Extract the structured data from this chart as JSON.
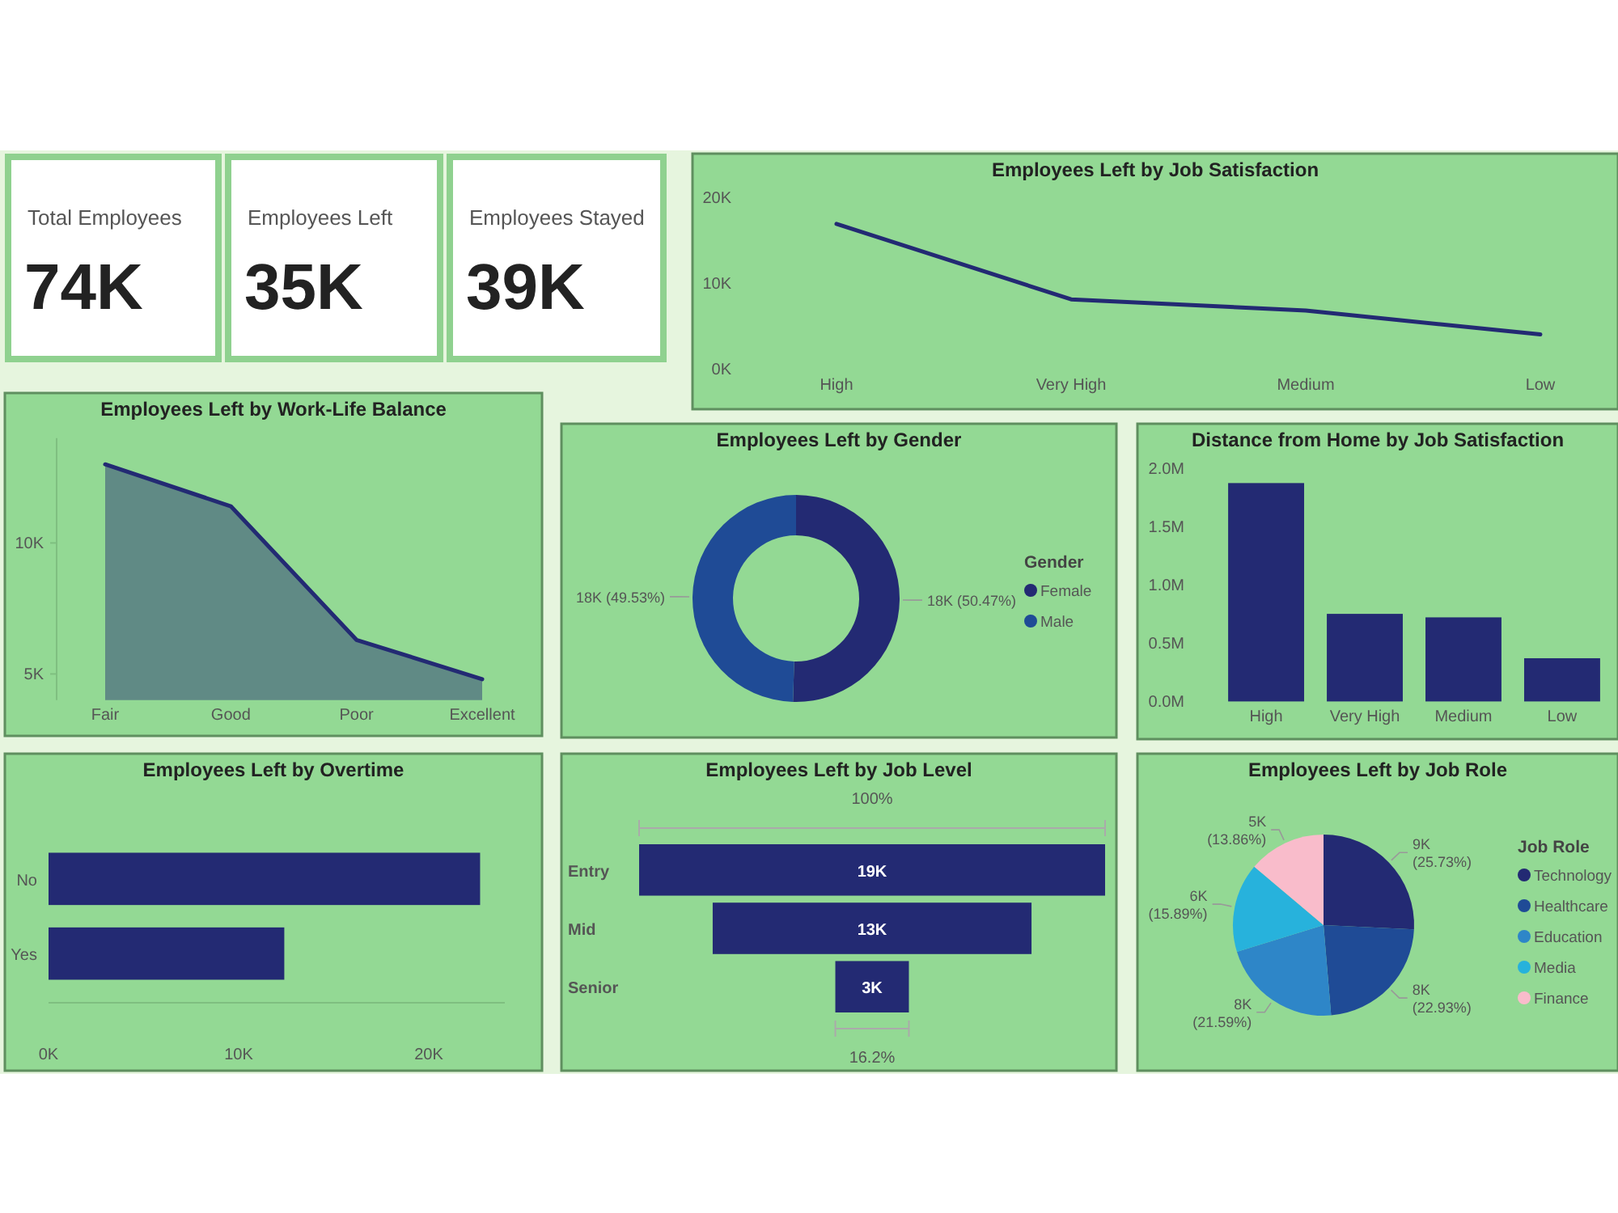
{
  "chart_data": [
    {
      "type": "other",
      "title": "Total Employees",
      "annotations": [
        "74K"
      ]
    },
    {
      "type": "other",
      "title": "Employees Left",
      "annotations": [
        "35K"
      ]
    },
    {
      "type": "other",
      "title": "Employees Stayed",
      "annotations": [
        "39K"
      ]
    },
    {
      "type": "line",
      "title": "Employees Left by Job Satisfaction",
      "categories": [
        "High",
        "Very High",
        "Medium",
        "Low"
      ],
      "values": [
        16900,
        8100,
        6800,
        4000
      ],
      "color": "#232a73",
      "ylim": [
        0,
        20000
      ],
      "yticks": [
        {
          "value": 0,
          "label": "0K"
        },
        {
          "value": 10000,
          "label": "10K"
        },
        {
          "value": 20000,
          "label": "20K"
        }
      ]
    },
    {
      "type": "area",
      "title": "Employees Left by Work-Life Balance",
      "categories": [
        "Fair",
        "Good",
        "Poor",
        "Excellent"
      ],
      "values": [
        13000,
        11400,
        6300,
        4800
      ],
      "color": "#232a73",
      "ylim": [
        4000,
        14000
      ],
      "yticks": [
        {
          "value": 5000,
          "label": "5K"
        },
        {
          "value": 10000,
          "label": "10K"
        }
      ]
    },
    {
      "type": "donut",
      "title": "Employees Left by Gender",
      "categories": [
        "Female",
        "Male"
      ],
      "values": [
        50.47,
        49.53
      ],
      "value_labels": [
        "18K (50.47%)",
        "18K (49.53%)"
      ],
      "colors": [
        "#232a73",
        "#1f4b96"
      ],
      "legend": "right",
      "legend_title": "Gender"
    },
    {
      "type": "bar",
      "title": "Distance from Home by Job Satisfaction",
      "categories": [
        "High",
        "Very High",
        "Medium",
        "Low"
      ],
      "values": [
        1870000,
        750000,
        720000,
        370000
      ],
      "color": "#232a73",
      "ylim": [
        0,
        2000000
      ],
      "yticks": [
        {
          "value": 0,
          "label": "0.0M"
        },
        {
          "value": 500000,
          "label": "0.5M"
        },
        {
          "value": 1000000,
          "label": "1.0M"
        },
        {
          "value": 1500000,
          "label": "1.5M"
        },
        {
          "value": 2000000,
          "label": "2.0M"
        }
      ]
    },
    {
      "type": "bar",
      "orientation": "horizontal",
      "title": "Employees Left by Overtime",
      "categories": [
        "No",
        "Yes"
      ],
      "values": [
        22700,
        12400
      ],
      "color": "#232a73",
      "xlim": [
        0,
        24000
      ],
      "xticks": [
        {
          "value": 0,
          "label": "0K"
        },
        {
          "value": 10000,
          "label": "10K"
        },
        {
          "value": 20000,
          "label": "20K"
        }
      ]
    },
    {
      "type": "other",
      "title": "Employees Left by Job Level",
      "categories": [
        "Entry",
        "Mid",
        "Senior"
      ],
      "values": [
        19000,
        13000,
        3000
      ],
      "value_labels": [
        "19K",
        "13K",
        "3K"
      ],
      "color": "#232a73",
      "annotations": [
        "100%",
        "16.2%"
      ]
    },
    {
      "type": "pie",
      "title": "Employees Left by Job Role",
      "categories": [
        "Technology",
        "Healthcare",
        "Education",
        "Media",
        "Finance"
      ],
      "values": [
        25.73,
        22.93,
        21.59,
        15.89,
        13.86
      ],
      "value_labels": [
        "9K (25.73%)",
        "8K (22.93%)",
        "8K (21.59%)",
        "6K (15.89%)",
        "5K (13.86%)"
      ],
      "colors": [
        "#232a73",
        "#1f4b96",
        "#2e86c8",
        "#27b2dc",
        "#f9bccb"
      ],
      "legend": "right",
      "legend_title": "Job Role"
    }
  ]
}
